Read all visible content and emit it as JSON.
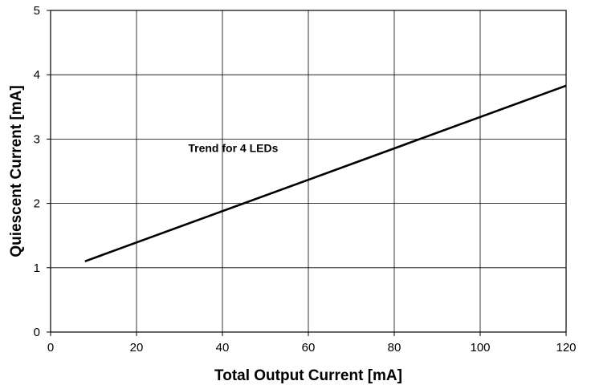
{
  "chart_data": {
    "type": "line",
    "xlabel": "Total Output Current [mA]",
    "ylabel": "Quiescent Current [mA]",
    "xlim": [
      0,
      120
    ],
    "ylim": [
      0,
      5
    ],
    "x_ticks": [
      0,
      20,
      40,
      60,
      80,
      100,
      120
    ],
    "y_ticks": [
      0,
      1,
      2,
      3,
      4,
      5
    ],
    "grid": true,
    "legend": "none",
    "series": [
      {
        "x": [
          8,
          120
        ],
        "y": [
          1.1,
          3.83
        ],
        "color": "#000000"
      }
    ],
    "annotations": [
      {
        "text": "Trend for 4 LEDs",
        "x": 42.5,
        "y": 2.8
      }
    ]
  }
}
